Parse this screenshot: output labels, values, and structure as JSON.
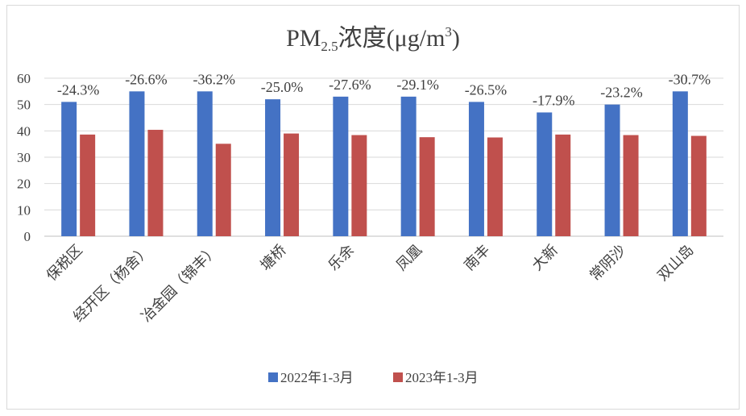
{
  "chart_data": {
    "type": "bar",
    "title": {
      "main": "PM",
      "sub": "2.5",
      "mid": "浓度(μg/m",
      "sup": "3",
      "end": ")"
    },
    "categories": [
      "保税区",
      "经开区（杨舍）",
      "冶金园（锦丰）",
      "塘桥",
      "乐余",
      "凤凰",
      "南丰",
      "大新",
      "常阴沙",
      "双山岛"
    ],
    "series": [
      {
        "name": "2022年1-3月",
        "color": "#4472c4",
        "values": [
          51,
          55,
          55,
          52,
          53,
          53,
          51,
          47,
          50,
          55
        ]
      },
      {
        "name": "2023年1-3月",
        "color": "#c0504d",
        "values": [
          38.6,
          40.4,
          35.1,
          39.0,
          38.4,
          37.6,
          37.5,
          38.6,
          38.4,
          38.1
        ]
      }
    ],
    "data_labels": [
      "-24.3%",
      "-26.6%",
      "-36.2%",
      "-25.0%",
      "-27.6%",
      "-29.1%",
      "-26.5%",
      "-17.9%",
      "-23.2%",
      "-30.7%"
    ],
    "ylim": [
      0,
      60
    ],
    "yticks": [
      0,
      10,
      20,
      30,
      40,
      50,
      60
    ],
    "grid": true,
    "legend_position": "bottom"
  }
}
